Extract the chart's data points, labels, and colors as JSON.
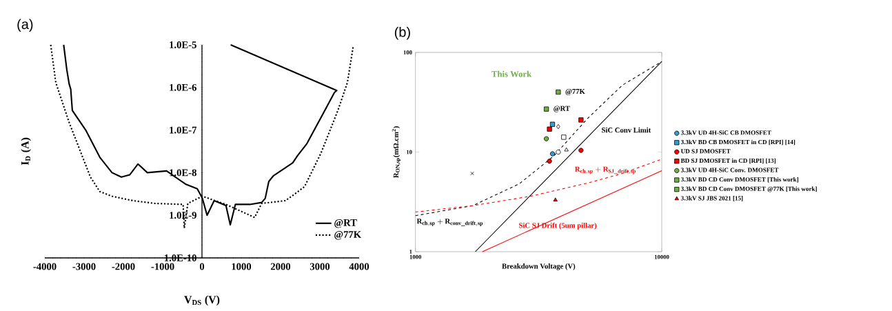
{
  "chart_data": [
    {
      "type": "line",
      "title": "(a)",
      "xlabel": "V$_{DS}$ (V)",
      "ylabel": "I$_{D}$ (A)",
      "log": "y",
      "xlim": [
        -4000,
        4000
      ],
      "ylim": [
        1e-10,
        1e-05
      ],
      "xticks": [
        -4000,
        -3000,
        -2000,
        -1000,
        0,
        1000,
        2000,
        3000,
        4000
      ],
      "yticks": [
        {
          "value": 1e-10,
          "label": "1.0E-10"
        },
        {
          "value": 1e-09,
          "label": "1.0E-9"
        },
        {
          "value": 1e-08,
          "label": "1.0E-8"
        },
        {
          "value": 1e-07,
          "label": "1.0E-7"
        },
        {
          "value": 1e-06,
          "label": "1.0E-6"
        },
        {
          "value": 1e-05,
          "label": "1.0E-5"
        }
      ],
      "legend": "bottom right",
      "marker": "none",
      "series": [
        {
          "name": "@RT",
          "color": "#000000",
          "line_style": "solid",
          "x": [
            -3520,
            -3440,
            -3380,
            -3340,
            -3300,
            -2960,
            -2600,
            -2290,
            -2050,
            -1840,
            -1630,
            -1390,
            -900,
            -420,
            -120,
            10,
            130,
            310,
            610,
            720,
            850,
            1220,
            1520,
            1610,
            1700,
            1820,
            2310,
            2430,
            2670,
            3090,
            3370,
            3430,
            730
          ],
          "values": [
            1e-05,
            2.6e-06,
            1.2e-06,
            9.1e-07,
            2.9e-07,
            1e-07,
            2.3e-08,
            1e-08,
            7.9e-09,
            8.9e-09,
            1.6e-08,
            1e-08,
            1.1e-08,
            5.4e-09,
            4.2e-09,
            2.5e-09,
            1e-09,
            2.2e-09,
            1.7e-09,
            6e-10,
            1.8e-09,
            1.8e-09,
            2e-09,
            2.5e-09,
            6.2e-09,
            8.5e-09,
            1.7e-08,
            2.5e-08,
            4.8e-08,
            2.5e-07,
            7.6e-07,
            8.5e-07,
            1e-05
          ]
        },
        {
          "name": "@77K",
          "color": "#000000",
          "line_style": "dotted",
          "x": [
            -3850,
            -3720,
            -3380,
            -2840,
            -2600,
            -2290,
            -1750,
            -1200,
            -480,
            -450,
            -360,
            10,
            610,
            1340,
            1520,
            2120,
            2370,
            2610,
            3030,
            3460,
            3700,
            3850
          ],
          "values": [
            1e-05,
            1.3e-06,
            1.5e-07,
            7.9e-09,
            3.6e-09,
            2.8e-09,
            2.2e-09,
            1.9e-09,
            1.8e-09,
            5e-10,
            1.9e-09,
            2.8e-09,
            1.8e-09,
            8.9e-10,
            1.9e-09,
            2.2e-09,
            3.2e-09,
            4.7e-09,
            2.9e-08,
            2.9e-07,
            1.3e-06,
            9.3e-06
          ]
        }
      ]
    },
    {
      "type": "scatter",
      "title": "(b)",
      "xlabel": "Breakdown Voltage (V)",
      "ylabel": "R$_{ON,sp}$(mΩ.cm$^{2}$)",
      "log": "xy",
      "xlim": [
        1000,
        10000
      ],
      "ylim": [
        1,
        100
      ],
      "xticks": [
        1000,
        10000
      ],
      "yticks": [
        1,
        10,
        100
      ],
      "legend": "right",
      "annotations": [
        "This Work",
        {
          "text": "@77K",
          "x": 3800,
          "y": 40
        },
        {
          "text": "@RT",
          "x": 3400,
          "y": 27
        }
      ],
      "series": [
        {
          "name": "3.3kV UD 4H-SiC CB DMOSFET",
          "color": "#2e9fd8",
          "marker": "circle",
          "x": [
            3600
          ],
          "values": [
            9.6
          ]
        },
        {
          "name": "3.3kV BD CB DMOSFET in CD [RPI] [14]",
          "color": "#2e9fd8",
          "marker": "square",
          "x": [
            3600
          ],
          "values": [
            19
          ]
        },
        {
          "name": "UD SJ DMOSFET",
          "color": "#ff0000",
          "marker": "circle",
          "x": [
            3500,
            4700
          ],
          "values": [
            8.1,
            10.4
          ]
        },
        {
          "name": "BD SJ DMOSFET in CD [RPI] [13]",
          "color": "#ff0000",
          "marker": "square",
          "x": [
            3500,
            4700
          ],
          "values": [
            17,
            21
          ]
        },
        {
          "name": "3.3kV UD 4H-SiC Conv. DMOSFET",
          "color": "#70ad47",
          "marker": "circle",
          "x": [
            3400
          ],
          "values": [
            13.6
          ]
        },
        {
          "name": "3.3kV BD CD Conv DMOSFET [This work]",
          "color": "#70ad47",
          "marker": "square",
          "x": [
            3400
          ],
          "values": [
            27
          ]
        },
        {
          "name": "3.3kV BD CD Conv DMOSFET @77K [This work]",
          "color": "#70ad47",
          "marker": "square",
          "x": [
            3800
          ],
          "values": [
            40
          ]
        },
        {
          "name": "3.3kV SJ JBS 2021 [15]",
          "color": "#ff0000",
          "marker": "triangle",
          "x": [
            3700
          ],
          "values": [
            3.3
          ]
        },
        {
          "color": "#000000",
          "marker": "cross",
          "x": [
            1700
          ],
          "values": [
            6.1
          ]
        },
        {
          "color": "#ffffff",
          "marker": "circle",
          "x": [
            3800
          ],
          "values": [
            10
          ]
        },
        {
          "color": "#ffffff",
          "marker": "triangle",
          "x": [
            4100
          ],
          "values": [
            10.5
          ]
        },
        {
          "color": "#ffffff",
          "marker": "diamond",
          "x": [
            3800
          ],
          "values": [
            18
          ]
        },
        {
          "color": "#ffffff",
          "marker": "square",
          "x": [
            4000
          ],
          "values": [
            14.1
          ]
        },
        {
          "name": "SiC Conv Limit",
          "type": "line",
          "line_style": "solid",
          "color": "#000000",
          "x": [
            1750,
            10000
          ],
          "values": [
            1,
            81
          ]
        },
        {
          "name": "\\mathbf{R}_{\\mathbf{ch,sp}} + \\mathbf{R}_{\\mathbf{conv\\_drift,sp}}",
          "type": "line",
          "line_style": "dashed",
          "color": "#000000",
          "x": [
            1000,
            1710,
            2640,
            3640,
            5020,
            6930,
            10000
          ],
          "values": [
            2.3,
            2.9,
            4.8,
            9.1,
            22,
            47,
            81
          ]
        },
        {
          "name": "\\mathbf{R}_{\\mathbf{ch,sp}} + \\mathbf{R}_{\\mathbf{SJ\\_drift,sp}}",
          "type": "line",
          "line_style": "dashed",
          "color": "#ff0000",
          "x": [
            1000,
            1710,
            2930,
            5020,
            6930,
            10000
          ],
          "values": [
            2.5,
            2.9,
            3.6,
            4.9,
            6.1,
            8.5
          ]
        },
        {
          "name": "SiC SJ Drift (5um pillar)",
          "type": "line",
          "line_style": "solid",
          "color": "#ff0000",
          "x": [
            1870,
            10000
          ],
          "values": [
            1,
            6.5
          ]
        }
      ]
    }
  ]
}
